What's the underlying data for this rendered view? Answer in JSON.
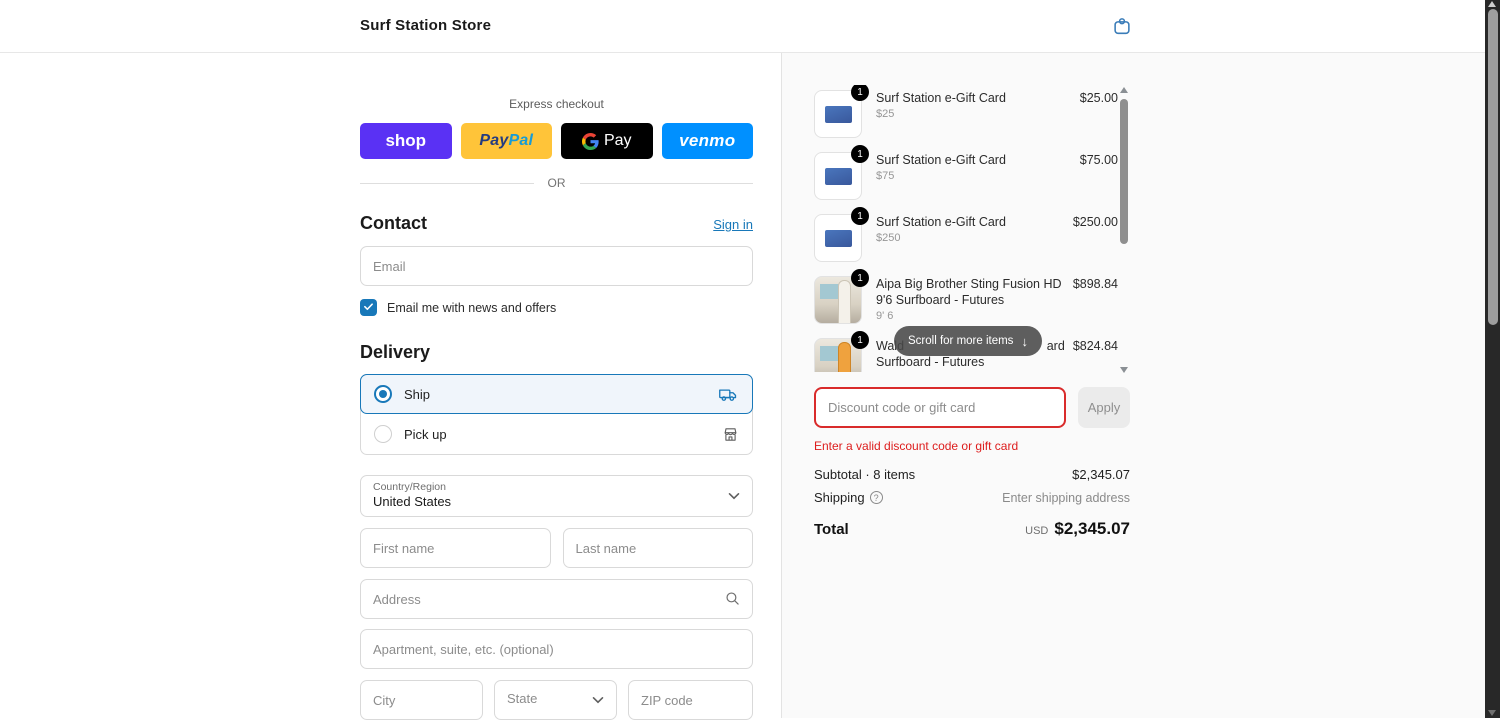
{
  "header": {
    "store_name": "Surf Station Store"
  },
  "express": {
    "label": "Express checkout",
    "divider": "OR",
    "shop_label": "shop",
    "paypal_label_1": "Pay",
    "paypal_label_2": "Pal",
    "gpay_label": "Pay",
    "venmo_label": "venmo",
    "colors": {
      "shop": "#5a31f4",
      "paypal": "#ffc439",
      "gpay": "#000000",
      "venmo": "#0090ff"
    }
  },
  "contact": {
    "heading": "Contact",
    "signin_label": "Sign in",
    "email_placeholder": "Email",
    "newsletter_label": "Email me with news and offers",
    "newsletter_checked": true
  },
  "delivery": {
    "heading": "Delivery",
    "ship_label": "Ship",
    "pickup_label": "Pick up",
    "selected": "Ship"
  },
  "address_form": {
    "country_label": "Country/Region",
    "country_value": "United States",
    "first_name_placeholder": "First name",
    "last_name_placeholder": "Last name",
    "address_placeholder": "Address",
    "apartment_placeholder": "Apartment, suite, etc. (optional)",
    "city_placeholder": "City",
    "state_placeholder": "State",
    "zip_placeholder": "ZIP code"
  },
  "cart": {
    "items": [
      {
        "qty": "1",
        "title": "Surf Station e-Gift Card",
        "variant": "$25",
        "price": "$25.00",
        "thumb": "giftcard"
      },
      {
        "qty": "1",
        "title": "Surf Station e-Gift Card",
        "variant": "$75",
        "price": "$75.00",
        "thumb": "giftcard"
      },
      {
        "qty": "1",
        "title": "Surf Station e-Gift Card",
        "variant": "$250",
        "price": "$250.00",
        "thumb": "giftcard"
      },
      {
        "qty": "1",
        "title": "Aipa Big Brother Sting Fusion HD 9'6 Surfboard - Futures",
        "variant": "9' 6",
        "price": "$898.84",
        "thumb": "board-white"
      },
      {
        "qty": "1",
        "title_fragment_left": "Wald",
        "title_fragment_right": "ard",
        "title_line2": "Surfboard - Futures",
        "price": "$824.84",
        "thumb": "board-orange"
      }
    ],
    "scroll_tooltip": "Scroll for more items",
    "discount_placeholder": "Discount code or gift card",
    "apply_label": "Apply",
    "discount_error": "Enter a valid discount code or gift card",
    "subtotal_label": "Subtotal · 8 items",
    "subtotal_value": "$2,345.07",
    "shipping_label": "Shipping",
    "shipping_value": "Enter shipping address",
    "total_label": "Total",
    "currency": "USD",
    "total_value": "$2,345.07"
  },
  "colors": {
    "accent_blue": "#1878b9",
    "error_red": "#dd1d1d",
    "badge_black": "#000000"
  }
}
